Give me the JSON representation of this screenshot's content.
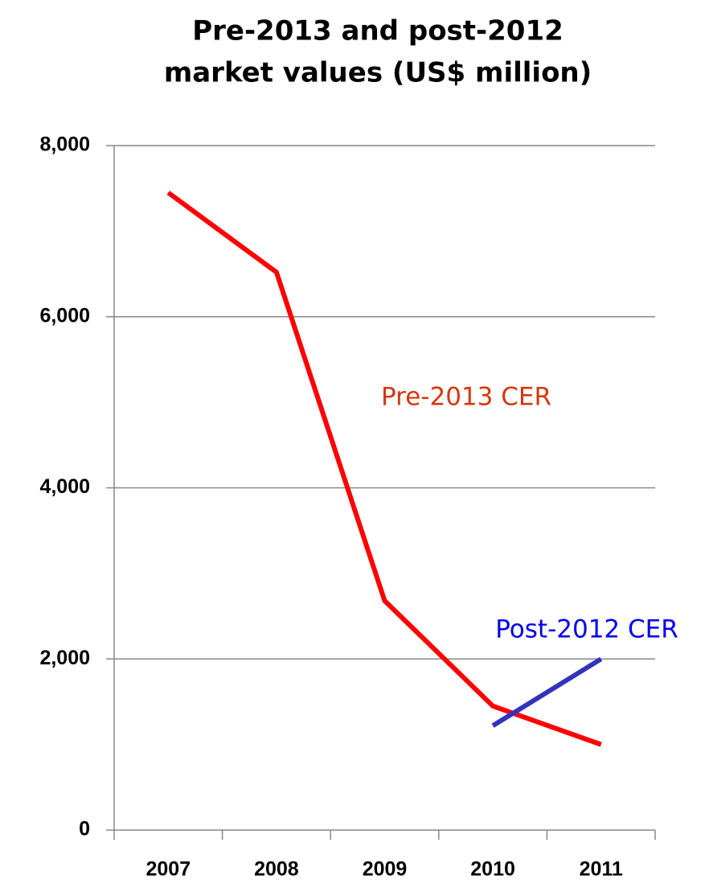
{
  "chart_data": {
    "type": "line",
    "title": [
      "Pre-2013 and post-2012",
      "market values (US$ million)"
    ],
    "categories": [
      "2007",
      "2008",
      "2009",
      "2010",
      "2011"
    ],
    "series": [
      {
        "name": "Pre-2013 CER",
        "color": "#ff0000",
        "label_color": "#d4380d",
        "values": [
          7450,
          6520,
          2680,
          1450,
          1000
        ]
      },
      {
        "name": "Post-2012 CER",
        "color": "#3333bb",
        "label_color": "#0000ee",
        "values": [
          null,
          null,
          null,
          1220,
          2000
        ]
      }
    ],
    "ylim": [
      0,
      8000
    ],
    "yticks": [
      0,
      {
        "value": 2000,
        "label": "2,000"
      },
      {
        "value": 4000,
        "label": "4,000"
      },
      {
        "value": 6000,
        "label": "6,000"
      },
      {
        "value": 8000,
        "label": "8,000"
      }
    ],
    "grid": true
  }
}
